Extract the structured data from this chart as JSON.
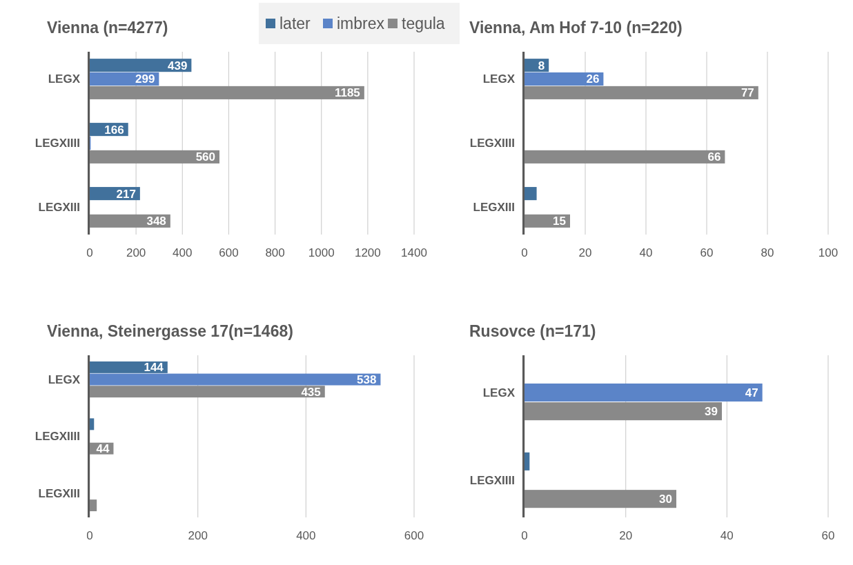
{
  "chart_data": [
    {
      "type": "bar",
      "orientation": "horizontal",
      "title": "Vienna (n=4277)",
      "categories": [
        "LEGX",
        "LEGXIIII",
        "LEGXIII"
      ],
      "series": [
        {
          "name": "later",
          "color": "#41719c",
          "values": [
            439,
            166,
            217
          ],
          "value_labels": [
            "439",
            "166",
            "217"
          ]
        },
        {
          "name": "imbrex",
          "color": "#5b84c8",
          "values": [
            299,
            4,
            null
          ],
          "value_labels": [
            "299",
            null,
            null
          ]
        },
        {
          "name": "tegula",
          "color": "#898989",
          "values": [
            1185,
            560,
            348
          ],
          "value_labels": [
            "1185",
            "560",
            "348"
          ]
        }
      ],
      "xlim": [
        0,
        1400
      ],
      "xticks": [
        0,
        200,
        400,
        600,
        800,
        1000,
        1200,
        1400
      ],
      "grid": "x",
      "legend": "top right"
    },
    {
      "type": "bar",
      "orientation": "horizontal",
      "title": "Vienna, Am Hof 7-10 (n=220)",
      "categories": [
        "LEGX",
        "LEGXIIII",
        "LEGXIII"
      ],
      "series": [
        {
          "color": "#41719c",
          "values": [
            8,
            null,
            4
          ],
          "value_labels": [
            "8",
            null,
            null
          ]
        },
        {
          "color": "#5b84c8",
          "values": [
            26,
            null,
            null
          ],
          "value_labels": [
            "26",
            null,
            null
          ]
        },
        {
          "color": "#898989",
          "values": [
            77,
            66,
            15
          ],
          "value_labels": [
            "77",
            "66",
            "15"
          ]
        }
      ],
      "xlim": [
        0,
        100
      ],
      "xticks": [
        0,
        20,
        40,
        60,
        80,
        100
      ],
      "grid": "x"
    },
    {
      "type": "bar",
      "orientation": "horizontal",
      "title": "Vienna, Steinergasse 17(n=1468)",
      "categories": [
        "LEGX",
        "LEGXIIII",
        "LEGXIII"
      ],
      "series": [
        {
          "color": "#41719c",
          "values": [
            144,
            8,
            null
          ],
          "value_labels": [
            "144",
            null,
            null
          ]
        },
        {
          "color": "#5b84c8",
          "values": [
            538,
            null,
            null
          ],
          "value_labels": [
            "538",
            null,
            null
          ]
        },
        {
          "color": "#898989",
          "values": [
            435,
            44,
            13
          ],
          "value_labels": [
            "435",
            "44",
            null
          ]
        }
      ],
      "xlim": [
        0,
        600
      ],
      "xticks": [
        0,
        200,
        400,
        600
      ],
      "grid": "x"
    },
    {
      "type": "bar",
      "orientation": "horizontal",
      "title": "Rusovce (n=171)",
      "categories": [
        "LEGX",
        "LEGXIIII"
      ],
      "series": [
        {
          "color": "#41719c",
          "values": [
            null,
            1
          ],
          "value_labels": [
            null,
            null
          ]
        },
        {
          "color": "#5b84c8",
          "values": [
            47,
            null
          ],
          "value_labels": [
            "47",
            null
          ]
        },
        {
          "color": "#898989",
          "values": [
            39,
            30
          ],
          "value_labels": [
            "39",
            "30"
          ]
        }
      ],
      "xlim": [
        0,
        60
      ],
      "xticks": [
        0,
        20,
        40,
        60
      ],
      "grid": "x"
    }
  ]
}
